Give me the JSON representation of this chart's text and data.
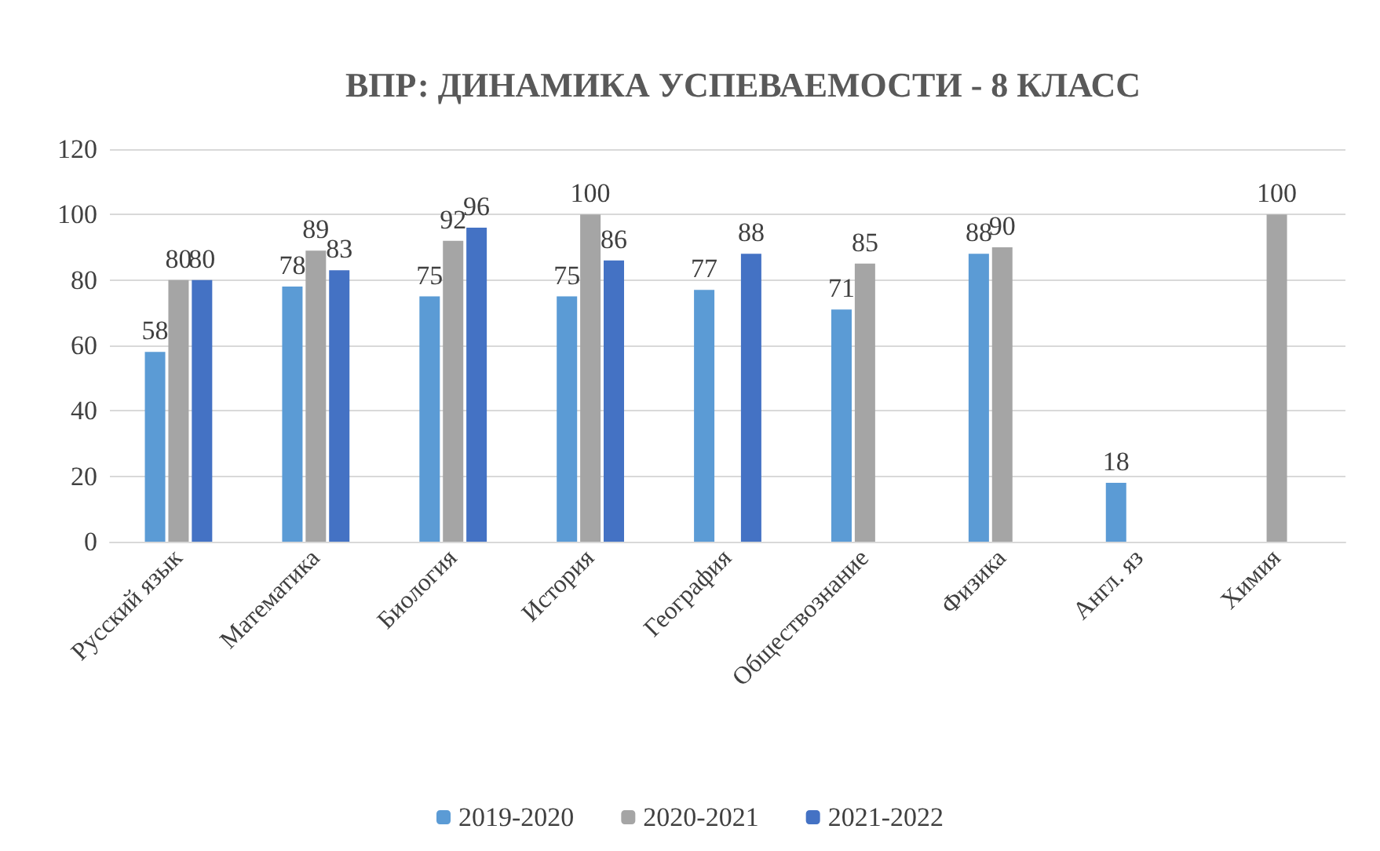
{
  "chart_data": {
    "type": "bar",
    "title": "ВПР: ДИНАМИКА УСПЕВАЕМОСТИ - 8 КЛАСС",
    "categories": [
      "Русский язык",
      "Математика",
      "Биология",
      "История",
      "География",
      "Обществознание",
      "Физика",
      "Англ. яз",
      "Химия"
    ],
    "series": [
      {
        "name": "2019-2020",
        "color": "#5b9bd5",
        "values": [
          58,
          78,
          75,
          75,
          77,
          71,
          88,
          18,
          null
        ]
      },
      {
        "name": "2020-2021",
        "color": "#a5a5a5",
        "values": [
          80,
          89,
          92,
          100,
          null,
          85,
          90,
          null,
          100
        ]
      },
      {
        "name": "2021-2022",
        "color": "#4472c4",
        "values": [
          80,
          83,
          96,
          86,
          88,
          null,
          null,
          null,
          null
        ]
      }
    ],
    "ylim": [
      0,
      120
    ],
    "yticks": [
      0,
      20,
      40,
      60,
      80,
      100,
      120
    ],
    "grid": "y",
    "legend": "bottom",
    "data_labels": true
  }
}
